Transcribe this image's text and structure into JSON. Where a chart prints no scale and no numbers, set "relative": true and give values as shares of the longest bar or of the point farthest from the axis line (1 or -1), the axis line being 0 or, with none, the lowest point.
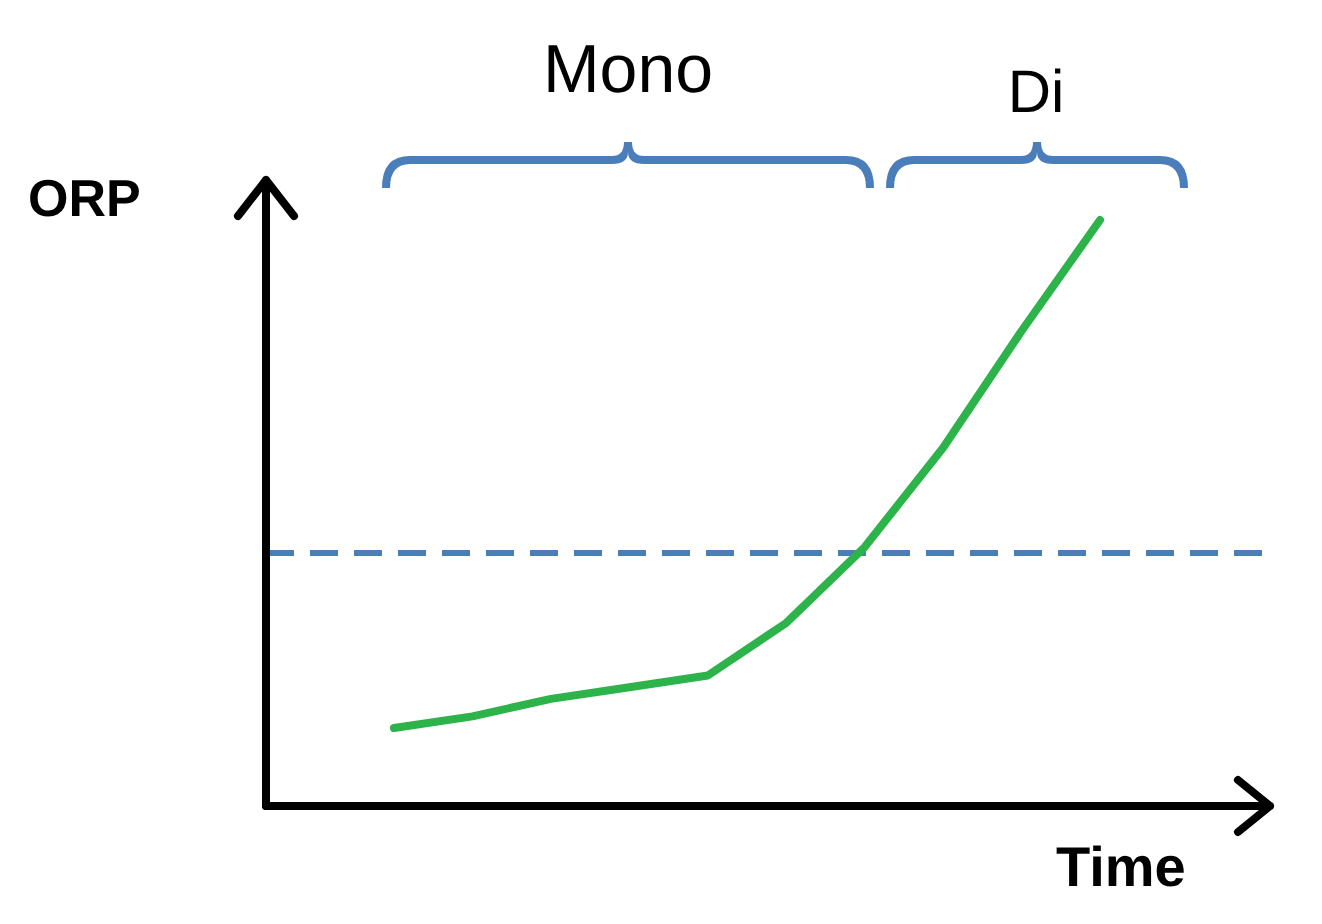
{
  "chart_data": {
    "type": "line",
    "relative": true,
    "xlabel": "Time",
    "ylabel": "ORP",
    "categories": [
      null,
      null,
      null,
      null,
      null,
      null,
      null,
      null,
      null,
      null
    ],
    "series": [
      {
        "color": "#2cb34a",
        "values": [
          0.13,
          0.15,
          0.18,
          0.2,
          0.22,
          0.31,
          0.44,
          0.61,
          0.81,
          1
        ]
      }
    ],
    "ref_lines": [
      {
        "axis": "y",
        "value": 0.43,
        "color": "#4a7ebb",
        "line_style": "dashed"
      }
    ],
    "annotations": [
      "Mono",
      "Di"
    ],
    "marker": "none",
    "line_style": "solid"
  }
}
